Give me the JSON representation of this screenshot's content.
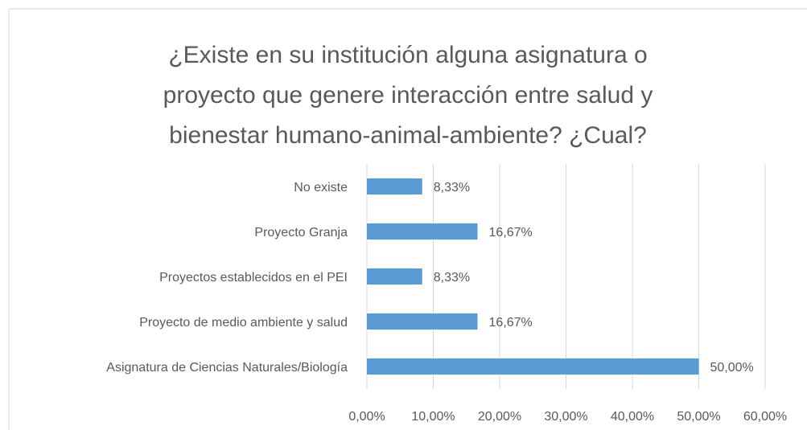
{
  "chart_data": {
    "type": "bar",
    "orientation": "horizontal",
    "title": [
      "¿Existe en su institución alguna asignatura o",
      "proyecto que genere interacción entre salud y",
      "bienestar humano-animal-ambiente? ¿Cual?"
    ],
    "categories": [
      "No existe",
      "Proyecto Granja",
      "Proyectos establecidos en el PEI",
      "Proyecto de medio ambiente y salud",
      "Asignatura de Ciencias Naturales/Biología"
    ],
    "values": [
      8.33,
      16.67,
      8.33,
      16.67,
      50.0
    ],
    "value_labels": [
      "8,33%",
      "16,67%",
      "8,33%",
      "16,67%",
      "50,00%"
    ],
    "color": "#5b9bd5",
    "xlim": [
      0,
      60
    ],
    "xticks": [
      {
        "value": 0,
        "label": "0,00%"
      },
      {
        "value": 10,
        "label": "10,00%"
      },
      {
        "value": 20,
        "label": "20,00%"
      },
      {
        "value": 30,
        "label": "30,00%"
      },
      {
        "value": 40,
        "label": "40,00%"
      },
      {
        "value": 50,
        "label": "50,00%"
      },
      {
        "value": 60,
        "label": "60,00%"
      }
    ],
    "grid": true
  }
}
